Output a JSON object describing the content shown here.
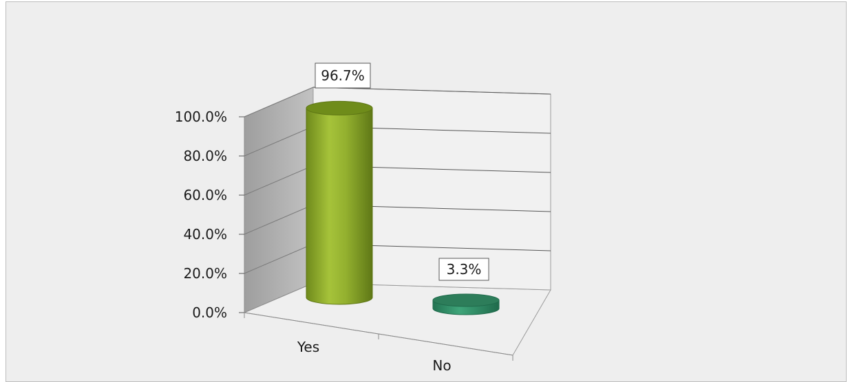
{
  "chart_data": {
    "type": "bar",
    "style": "3d-cylinder",
    "categories": [
      "Yes",
      "No"
    ],
    "values": [
      96.7,
      3.3
    ],
    "data_labels": [
      "96.7%",
      "3.3%"
    ],
    "y_ticks": [
      "0.0%",
      "20.0%",
      "40.0%",
      "60.0%",
      "80.0%",
      "100.0%"
    ],
    "ylim": [
      0,
      100
    ],
    "grid": true,
    "legend": "none",
    "colors": {
      "yes_bar": "#8aa52c",
      "no_bar": "#2e8b63",
      "back_wall": "#a9a9a9",
      "background": "#eeeeee"
    }
  }
}
